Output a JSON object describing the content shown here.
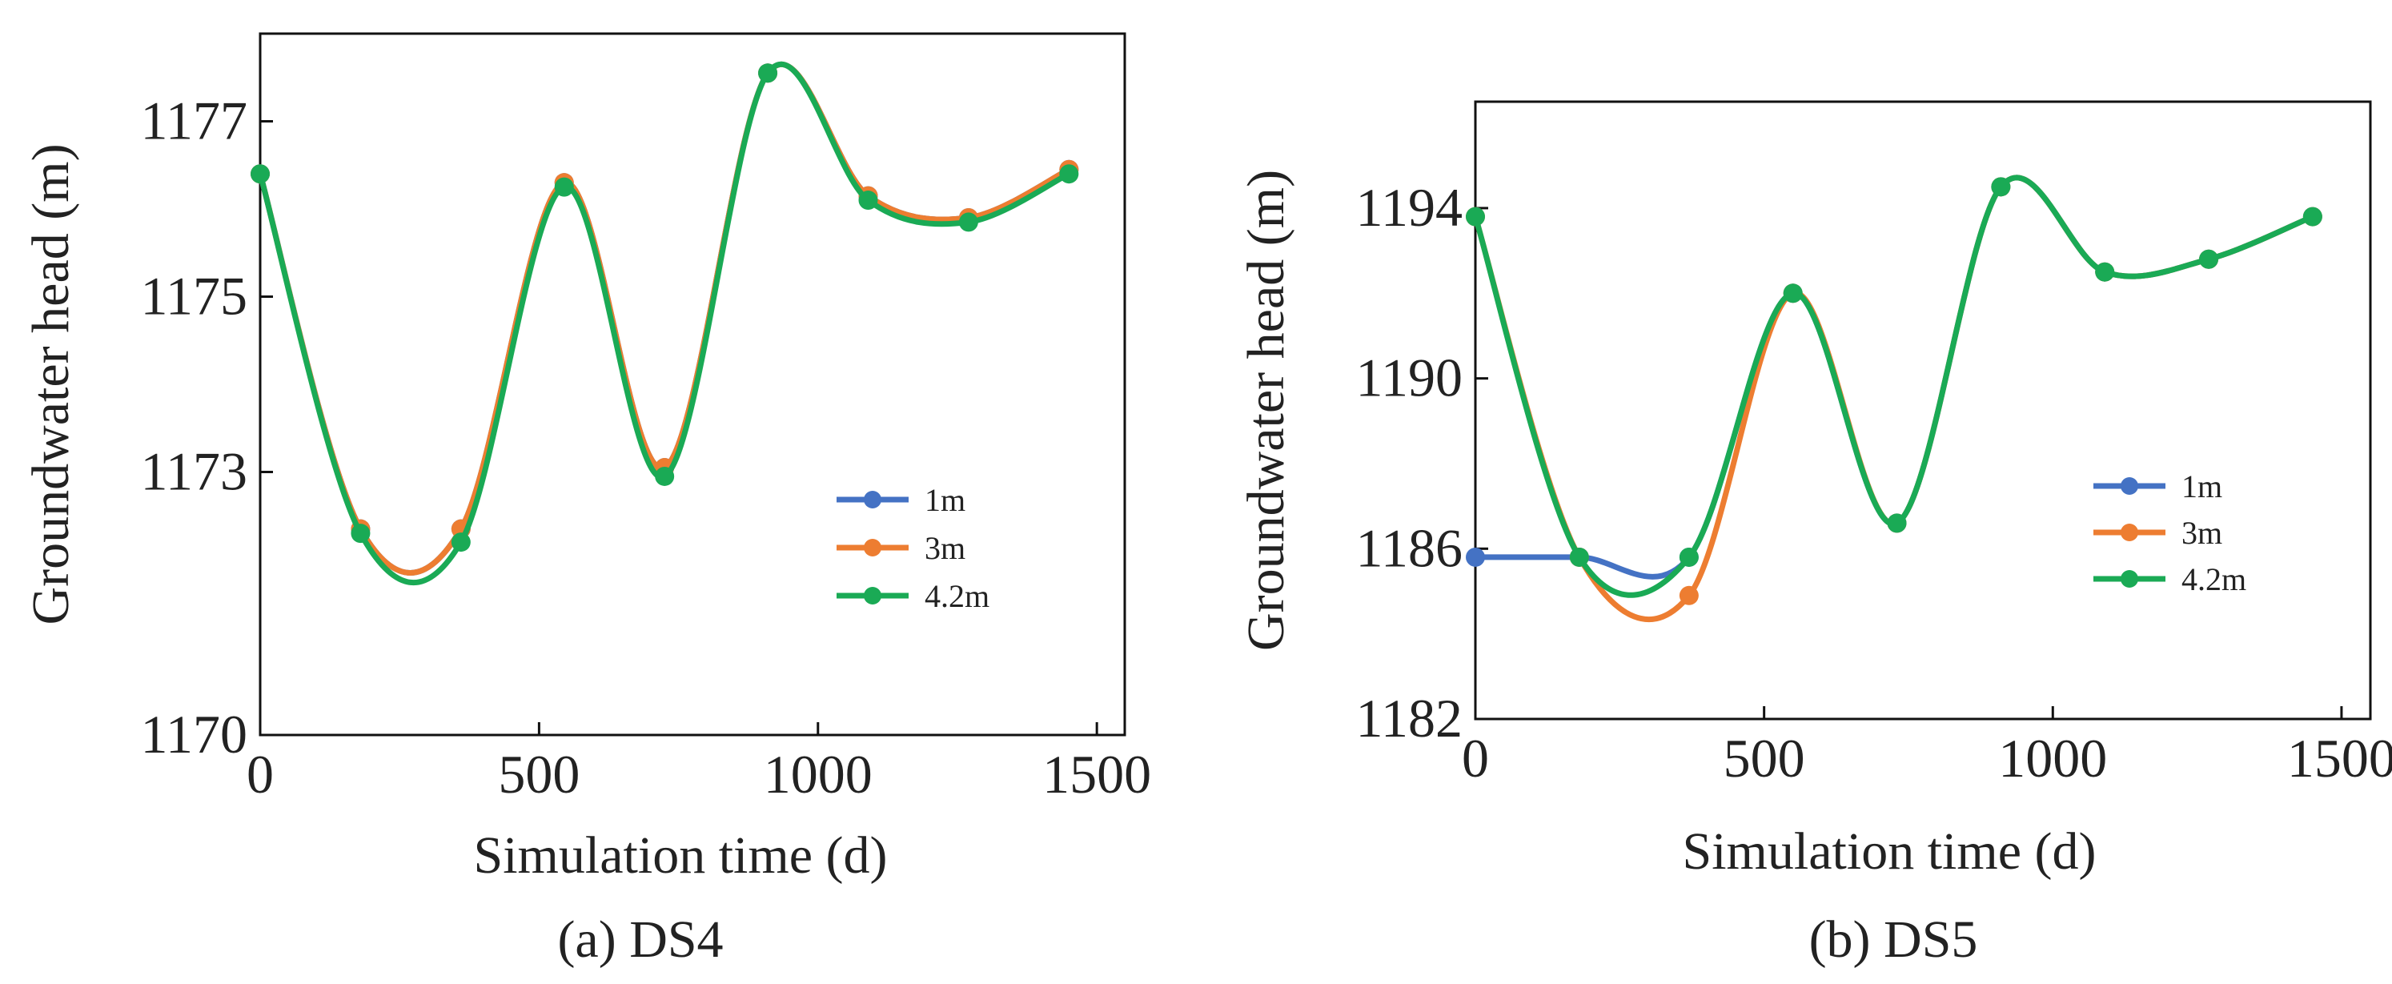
{
  "chart_data": [
    {
      "type": "line",
      "caption": "(a) DS4",
      "xlabel": "Simulation time (d)",
      "ylabel": "Groundwater head (m)",
      "xlim": [
        0,
        1550
      ],
      "ylim": [
        1170,
        1178
      ],
      "xticks": [
        0,
        500,
        1000,
        1500
      ],
      "yticks": [
        1170,
        1173,
        1175,
        1177
      ],
      "x": [
        0,
        180,
        360,
        545,
        725,
        910,
        1090,
        1270,
        1450
      ],
      "legend_position": "center-right",
      "series": [
        {
          "name": "1m",
          "color": "#4472c4",
          "values": [
            1176.4,
            1172.35,
            1172.35,
            1176.3,
            1173.05,
            1177.55,
            1176.15,
            1175.9,
            1176.45
          ]
        },
        {
          "name": "3m",
          "color": "#ed7d31",
          "values": [
            1176.4,
            1172.35,
            1172.35,
            1176.3,
            1173.05,
            1177.55,
            1176.15,
            1175.9,
            1176.45
          ]
        },
        {
          "name": "4.2m",
          "color": "#1aaa55",
          "values": [
            1176.4,
            1172.3,
            1172.2,
            1176.25,
            1172.95,
            1177.55,
            1176.1,
            1175.85,
            1176.4
          ]
        }
      ]
    },
    {
      "type": "line",
      "caption": "(b) DS5",
      "xlabel": "Simulation time (d)",
      "ylabel": "Groundwater head (m)",
      "xlim": [
        0,
        1550
      ],
      "ylim": [
        1182,
        1196.5
      ],
      "xticks": [
        0,
        500,
        1000,
        1500
      ],
      "yticks": [
        1182,
        1186,
        1190,
        1194
      ],
      "x": [
        0,
        180,
        370,
        550,
        730,
        910,
        1090,
        1270,
        1450
      ],
      "legend_position": "center-right",
      "series": [
        {
          "name": "1m",
          "color": "#4472c4",
          "values": [
            1185.8,
            1185.8,
            1185.8,
            1192,
            1186.6,
            1194.5,
            1192.5,
            1192.8,
            1193.8
          ]
        },
        {
          "name": "3m",
          "color": "#ed7d31",
          "values": [
            1193.8,
            1185.8,
            1184.9,
            1192,
            1186.6,
            1194.5,
            1192.5,
            1192.8,
            1193.8
          ]
        },
        {
          "name": "4.2m",
          "color": "#1aaa55",
          "values": [
            1193.8,
            1185.8,
            1185.8,
            1192,
            1186.6,
            1194.5,
            1192.5,
            1192.8,
            1193.8
          ]
        }
      ]
    }
  ]
}
